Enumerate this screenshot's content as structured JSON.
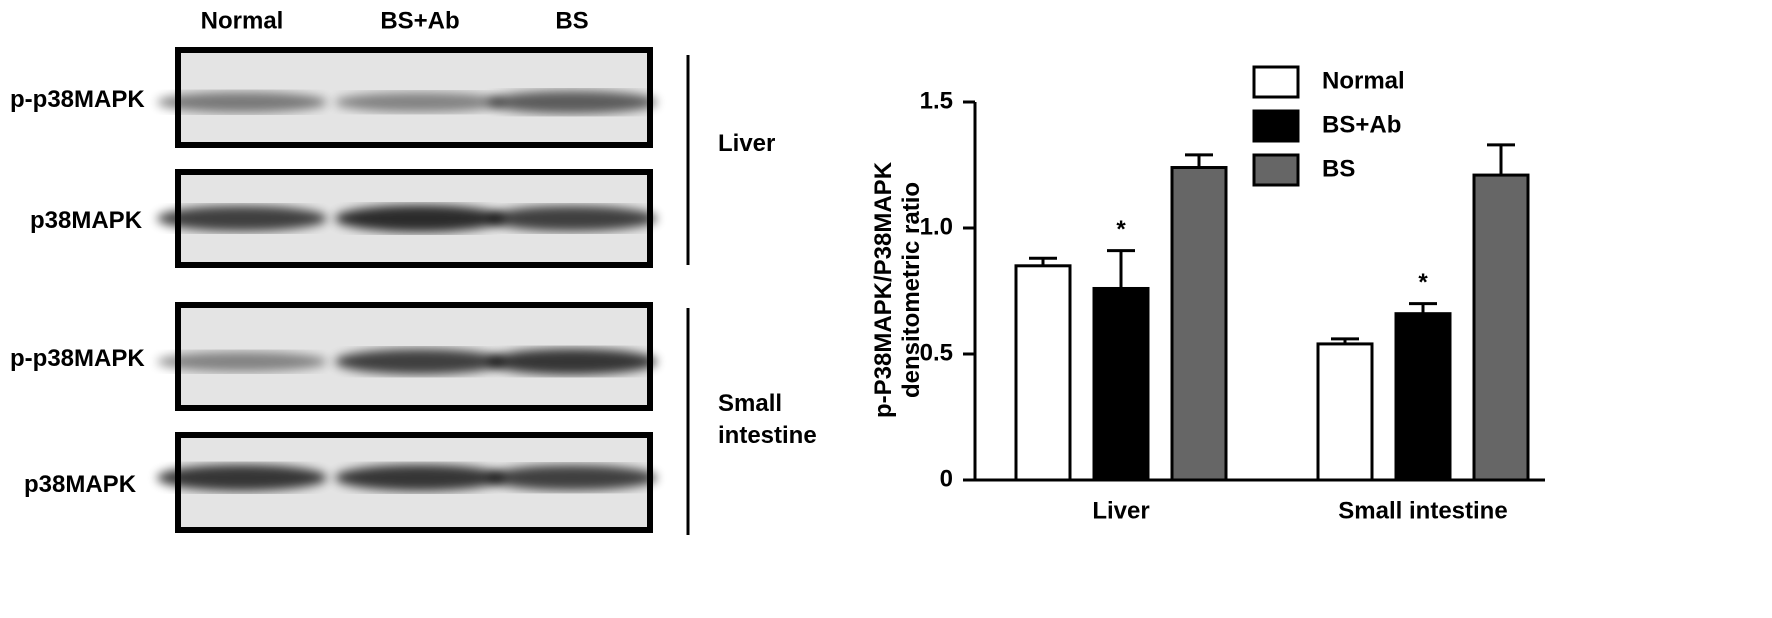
{
  "blot": {
    "lanes": [
      "Normal",
      "BS+Ab",
      "BS"
    ],
    "panels": [
      {
        "label": "p-p38MAPK"
      },
      {
        "label": "p38MAPK"
      },
      {
        "label": "p-p38MAPK"
      },
      {
        "label": "p38MAPK"
      }
    ],
    "tissues": [
      "Liver",
      "Small intestine"
    ]
  },
  "chart_data": {
    "type": "bar",
    "ylabel": [
      "p-P38MAPK/P38MAPK",
      "densitometric ratio"
    ],
    "categories": [
      "Liver",
      "Small intestine"
    ],
    "series": [
      {
        "name": "Normal",
        "color": "#ffffff",
        "values": [
          0.85,
          0.54
        ],
        "errors": [
          0.03,
          0.02
        ]
      },
      {
        "name": "BS+Ab",
        "color": "#000000",
        "values": [
          0.76,
          0.66
        ],
        "errors": [
          0.15,
          0.04
        ],
        "annotations": [
          "*",
          "*"
        ]
      },
      {
        "name": "BS",
        "color": "#666666",
        "values": [
          1.24,
          1.21
        ],
        "errors": [
          0.05,
          0.12
        ]
      }
    ],
    "ylim": [
      0,
      1.5
    ],
    "yticks": [
      0,
      0.5,
      {
        "value": 1,
        "label": "1.0"
      },
      1.5
    ],
    "legend": "upper-center"
  }
}
